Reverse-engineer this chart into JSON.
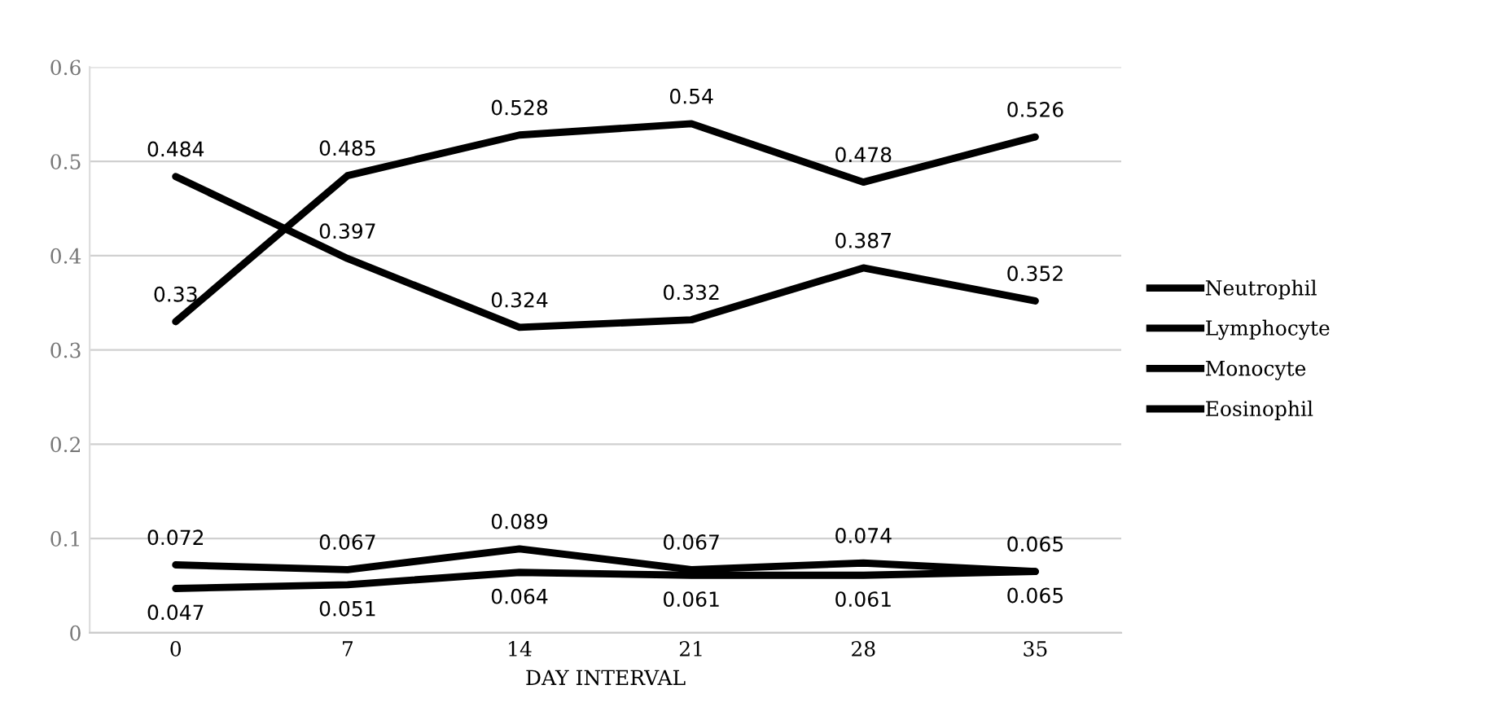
{
  "chart_data": {
    "type": "line",
    "xlabel": "DAY INTERVAL",
    "categories": [
      "0",
      "7",
      "14",
      "21",
      "28",
      "35"
    ],
    "series": [
      {
        "name": "Neutrophil",
        "color": "#000000",
        "values": [
          0.484,
          0.397,
          0.324,
          0.332,
          0.387,
          0.352
        ]
      },
      {
        "name": "Lymphocyte",
        "color": "#000000",
        "values": [
          0.33,
          0.485,
          0.528,
          0.54,
          0.478,
          0.526
        ]
      },
      {
        "name": "Monocyte",
        "color": "#000000",
        "values": [
          0.072,
          0.067,
          0.089,
          0.067,
          0.074,
          0.065
        ]
      },
      {
        "name": "Eosinophil",
        "color": "#000000",
        "values": [
          0.047,
          0.051,
          0.064,
          0.061,
          0.061,
          0.065
        ]
      }
    ],
    "ylim": [
      0,
      0.6
    ],
    "yticks": [
      0,
      0.1,
      0.2,
      0.3,
      0.4,
      0.5,
      0.6
    ],
    "grid": "y",
    "legend": "right",
    "data_labels": true,
    "marker": "none",
    "line_style": "solid"
  }
}
